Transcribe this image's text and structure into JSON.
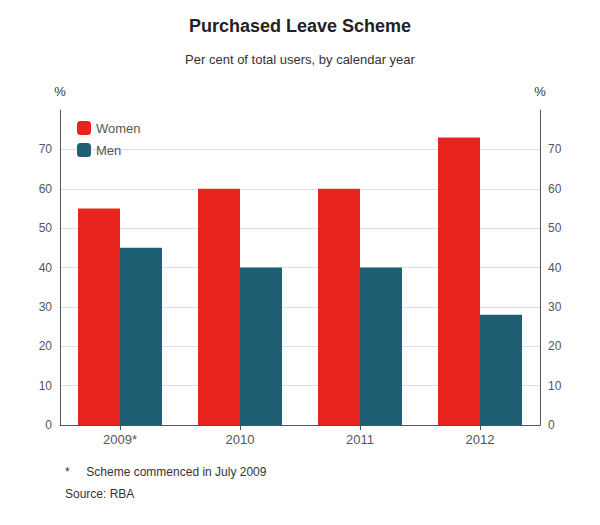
{
  "chart_data": {
    "type": "bar",
    "title": "Purchased Leave Scheme",
    "subtitle": "Per cent of total users, by calendar year",
    "categories": [
      "2009*",
      "2010",
      "2011",
      "2012"
    ],
    "series": [
      {
        "name": "Women",
        "color": "#e8241e",
        "values": [
          55,
          60,
          60,
          73
        ]
      },
      {
        "name": "Men",
        "color": "#1e5f74",
        "values": [
          45,
          40,
          40,
          28
        ]
      }
    ],
    "ylabel": "%",
    "y2label": "%",
    "ylim": [
      0,
      80
    ],
    "yticks": [
      0,
      10,
      20,
      30,
      40,
      50,
      60,
      70
    ],
    "y2lim": [
      0,
      80
    ],
    "y2ticks": [
      0,
      10,
      20,
      30,
      40,
      50,
      60,
      70
    ],
    "grid": true,
    "legend": "upper left",
    "footnotes": [
      "*     Scheme commenced in July 2009",
      "Source: RBA"
    ]
  }
}
